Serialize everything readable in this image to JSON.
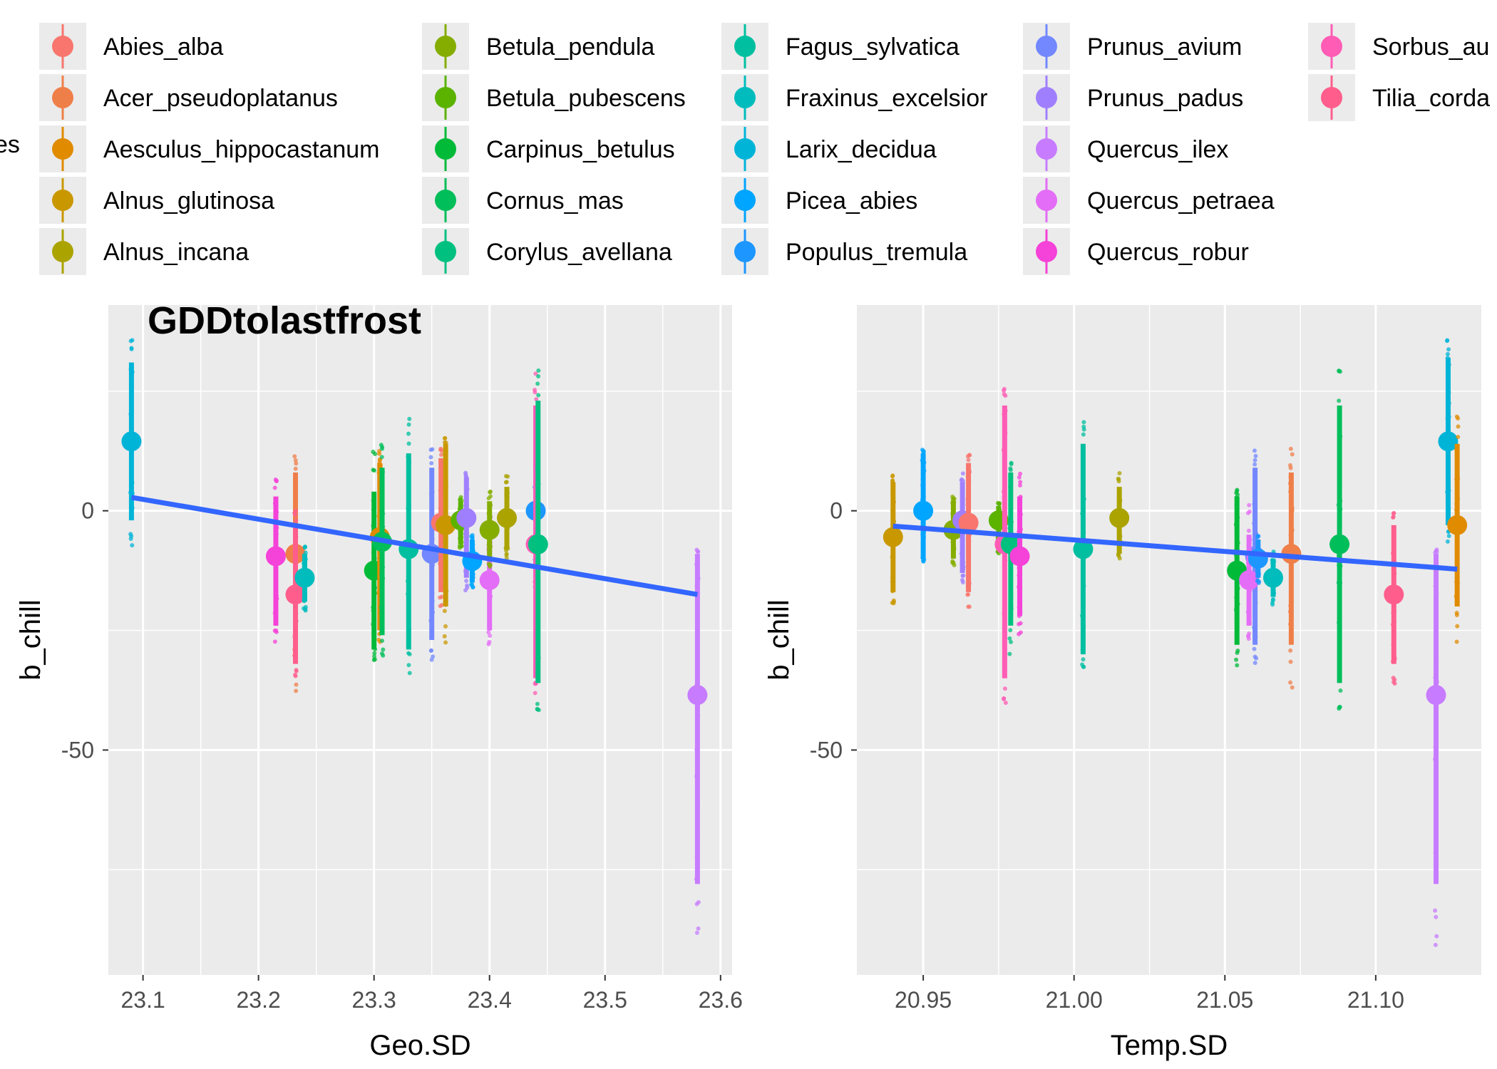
{
  "legend": {
    "title_visible": "es",
    "columns": [
      [
        {
          "label": "Abies_alba",
          "color": "#F8766D"
        },
        {
          "label": "Acer_pseudoplatanus",
          "color": "#EF7F49"
        },
        {
          "label": "Aesculus_hippocastanum",
          "color": "#E08B00"
        },
        {
          "label": "Alnus_glutinosa",
          "color": "#C99800"
        },
        {
          "label": "Alnus_incana",
          "color": "#ABA300"
        }
      ],
      [
        {
          "label": "Betula_pendula",
          "color": "#85AD00"
        },
        {
          "label": "Betula_pubescens",
          "color": "#5BB300"
        },
        {
          "label": "Carpinus_betulus",
          "color": "#00BA38"
        },
        {
          "label": "Cornus_mas",
          "color": "#00BE5A"
        },
        {
          "label": "Corylus_avellana",
          "color": "#00C07F"
        }
      ],
      [
        {
          "label": "Fagus_sylvatica",
          "color": "#00BFA0"
        },
        {
          "label": "Fraxinus_excelsior",
          "color": "#00BCBD"
        },
        {
          "label": "Larix_decidua",
          "color": "#00B4D8"
        },
        {
          "label": "Picea_abies",
          "color": "#00A5FF"
        },
        {
          "label": "Populus_tremula",
          "color": "#1E96FF"
        }
      ],
      [
        {
          "label": "Prunus_avium",
          "color": "#7388FF"
        },
        {
          "label": "Prunus_padus",
          "color": "#A07FFF"
        },
        {
          "label": "Quercus_ilex",
          "color": "#C77CFF"
        },
        {
          "label": "Quercus_petraea",
          "color": "#E36DF6"
        },
        {
          "label": "Quercus_robur",
          "color": "#F542D8"
        }
      ],
      [
        {
          "label": "Sorbus_au",
          "color": "#FF5CB5"
        },
        {
          "label": "Tilia_corda",
          "color": "#FF5E8C"
        }
      ]
    ]
  },
  "chart_data": [
    {
      "type": "scatter",
      "title": "GDDtolastfrost",
      "xlabel": "Geo.SD",
      "ylabel": "b_chill",
      "xlim": [
        23.07,
        23.61
      ],
      "ylim": [
        -97,
        43
      ],
      "xticks": [
        "23.1",
        "23.2",
        "23.3",
        "23.4",
        "23.5",
        "23.6"
      ],
      "xtick_values": [
        23.1,
        23.2,
        23.3,
        23.4,
        23.5,
        23.6
      ],
      "yticks": [
        "-50",
        "0"
      ],
      "ytick_values": [
        -50,
        0
      ],
      "grid": true,
      "trend_line": {
        "x": [
          23.09,
          23.58
        ],
        "y": [
          2.8,
          -17.5
        ],
        "color": "#3366FF"
      },
      "series": [
        {
          "name": "Larix_decidua",
          "x": 23.09,
          "mean": 14.5,
          "lo": -2,
          "hi": 31,
          "min": -9,
          "max": 36,
          "color": "#00B4D8"
        },
        {
          "name": "Quercus_robur",
          "x": 23.215,
          "mean": -9.5,
          "lo": -24,
          "hi": 3,
          "min": -28,
          "max": 8,
          "color": "#F542D8"
        },
        {
          "name": "Acer_pseudoplatanus",
          "x": 23.232,
          "mean": -9,
          "lo": -28,
          "hi": 8,
          "min": -38,
          "max": 13,
          "color": "#EF7F49"
        },
        {
          "name": "Tilia_corda",
          "x": 23.232,
          "mean": -17.5,
          "lo": -32,
          "hi": -3,
          "min": -35,
          "max": 0,
          "color": "#FF5E8C"
        },
        {
          "name": "Fraxinus_excelsior",
          "x": 23.24,
          "mean": -14,
          "lo": -19,
          "hi": -9,
          "min": -21,
          "max": -7,
          "color": "#00BCBD"
        },
        {
          "name": "Carpinus_betulus",
          "x": 23.3,
          "mean": -12.5,
          "lo": -29,
          "hi": 4,
          "min": -33,
          "max": 14,
          "color": "#00BA38"
        },
        {
          "name": "Aesculus_hippocastanum",
          "x": 23.305,
          "mean": -5.5,
          "lo": -25,
          "hi": 10,
          "min": -30,
          "max": 13,
          "color": "#E08B00"
        },
        {
          "name": "Cornus_mas",
          "x": 23.307,
          "mean": -6.5,
          "lo": -26,
          "hi": 9,
          "min": -31,
          "max": 14,
          "color": "#00BE5A"
        },
        {
          "name": "Fagus_sylvatica",
          "x": 23.33,
          "mean": -8,
          "lo": -29,
          "hi": 12,
          "min": -34,
          "max": 20,
          "color": "#00BFA0"
        },
        {
          "name": "Prunus_avium",
          "x": 23.35,
          "mean": -9,
          "lo": -27,
          "hi": 9,
          "min": -32,
          "max": 13,
          "color": "#7388FF"
        },
        {
          "name": "Abies_alba",
          "x": 23.358,
          "mean": -2.5,
          "lo": -17,
          "hi": 11,
          "min": -21,
          "max": 13,
          "color": "#F8766D"
        },
        {
          "name": "Alnus_glutinosa",
          "x": 23.362,
          "mean": -3,
          "lo": -20,
          "hi": 14,
          "min": -28,
          "max": 16,
          "color": "#C99800"
        },
        {
          "name": "Betula_pubescens",
          "x": 23.375,
          "mean": -2,
          "lo": -7,
          "hi": 2,
          "min": -8,
          "max": 3,
          "color": "#5BB300"
        },
        {
          "name": "Prunus_padus",
          "x": 23.38,
          "mean": -1.5,
          "lo": -14,
          "hi": 7,
          "min": -17,
          "max": 8,
          "color": "#A07FFF"
        },
        {
          "name": "Picea_abies",
          "x": 23.385,
          "mean": -10.5,
          "lo": -15,
          "hi": -6,
          "min": -16,
          "max": -5,
          "color": "#00A5FF"
        },
        {
          "name": "Quercus_petraea",
          "x": 23.4,
          "mean": -14.5,
          "lo": -25,
          "hi": -4,
          "min": -28,
          "max": 3,
          "color": "#E36DF6"
        },
        {
          "name": "Betula_pendula",
          "x": 23.4,
          "mean": -4,
          "lo": -10,
          "hi": 2,
          "min": -12,
          "max": 4,
          "color": "#85AD00"
        },
        {
          "name": "Alnus_incana",
          "x": 23.415,
          "mean": -1.5,
          "lo": -8,
          "hi": 5,
          "min": -10,
          "max": 8,
          "color": "#ABA300"
        },
        {
          "name": "Populus_tremula",
          "x": 23.44,
          "mean": 0,
          "lo": -14,
          "hi": 10,
          "min": -17,
          "max": 13,
          "color": "#1E96FF"
        },
        {
          "name": "Sorbus_au",
          "x": 23.44,
          "mean": -7,
          "lo": -35,
          "hi": 22,
          "min": -40,
          "max": 30,
          "color": "#FF5CB5"
        },
        {
          "name": "Corylus_avellana",
          "x": 23.442,
          "mean": -7,
          "lo": -36,
          "hi": 23,
          "min": -42,
          "max": 31,
          "color": "#00C07F"
        },
        {
          "name": "Quercus_ilex",
          "x": 23.58,
          "mean": -38.5,
          "lo": -78,
          "hi": -9,
          "min": -91,
          "max": -8,
          "color": "#C77CFF"
        }
      ]
    },
    {
      "type": "scatter",
      "title": "",
      "xlabel": "Temp.SD",
      "ylabel": "b_chill",
      "xlim": [
        20.928,
        21.135
      ],
      "ylim": [
        -97,
        43
      ],
      "xticks": [
        "20.95",
        "21.00",
        "21.05",
        "21.10"
      ],
      "xtick_values": [
        20.95,
        21.0,
        21.05,
        21.1
      ],
      "yticks": [
        "-50",
        "0"
      ],
      "ytick_values": [
        -50,
        0
      ],
      "grid": true,
      "trend_line": {
        "x": [
          20.94,
          21.127
        ],
        "y": [
          -3.2,
          -12.2
        ],
        "color": "#3366FF"
      },
      "series": [
        {
          "name": "Alnus_glutinosa",
          "x": 20.94,
          "mean": -5.5,
          "lo": -17,
          "hi": 6,
          "min": -20,
          "max": 8,
          "color": "#C99800"
        },
        {
          "name": "Picea_abies",
          "x": 20.95,
          "mean": 0,
          "lo": -10,
          "hi": 12,
          "min": -11,
          "max": 13,
          "color": "#00A5FF"
        },
        {
          "name": "Betula_pendula",
          "x": 20.96,
          "mean": -4,
          "lo": -10,
          "hi": 2,
          "min": -12,
          "max": 4,
          "color": "#85AD00"
        },
        {
          "name": "Prunus_padus",
          "x": 20.963,
          "mean": -2,
          "lo": -13,
          "hi": 6,
          "min": -15,
          "max": 8,
          "color": "#A07FFF"
        },
        {
          "name": "Abies_alba",
          "x": 20.965,
          "mean": -2.5,
          "lo": -17,
          "hi": 10,
          "min": -21,
          "max": 12,
          "color": "#F8766D"
        },
        {
          "name": "Betula_pubescens",
          "x": 20.975,
          "mean": -2,
          "lo": -8,
          "hi": 1,
          "min": -9,
          "max": 2,
          "color": "#5BB300"
        },
        {
          "name": "Sorbus_au",
          "x": 20.977,
          "mean": -7,
          "lo": -35,
          "hi": 22,
          "min": -41,
          "max": 30,
          "color": "#FF5CB5"
        },
        {
          "name": "Corylus_avellana",
          "x": 20.979,
          "mean": -7,
          "lo": -24,
          "hi": 8,
          "min": -30,
          "max": 10,
          "color": "#00C07F"
        },
        {
          "name": "Quercus_robur",
          "x": 20.982,
          "mean": -9.5,
          "lo": -22,
          "hi": 3,
          "min": -26,
          "max": 8,
          "color": "#F542D8"
        },
        {
          "name": "Fagus_sylvatica",
          "x": 21.003,
          "mean": -8,
          "lo": -30,
          "hi": 14,
          "min": -34,
          "max": 20,
          "color": "#00BFA0"
        },
        {
          "name": "Alnus_incana",
          "x": 21.015,
          "mean": -1.5,
          "lo": -9,
          "hi": 5,
          "min": -10,
          "max": 8,
          "color": "#ABA300"
        },
        {
          "name": "Carpinus_betulus",
          "x": 21.054,
          "mean": -12.5,
          "lo": -28,
          "hi": 3,
          "min": -33,
          "max": 5,
          "color": "#00BA38"
        },
        {
          "name": "Prunus_avium",
          "x": 21.06,
          "mean": -9.5,
          "lo": -28,
          "hi": 9,
          "min": -32,
          "max": 13,
          "color": "#7388FF"
        },
        {
          "name": "Quercus_petraea",
          "x": 21.058,
          "mean": -14.5,
          "lo": -24,
          "hi": -5,
          "min": -27,
          "max": 2,
          "color": "#E36DF6"
        },
        {
          "name": "Populus_tremula",
          "x": 21.061,
          "mean": -10,
          "lo": -14,
          "hi": -6,
          "min": -16,
          "max": -5,
          "color": "#1E96FF"
        },
        {
          "name": "Fraxinus_excelsior",
          "x": 21.066,
          "mean": -14,
          "lo": -18,
          "hi": -10,
          "min": -20,
          "max": -8,
          "color": "#00BCBD"
        },
        {
          "name": "Acer_pseudoplatanus",
          "x": 21.072,
          "mean": -9,
          "lo": -28,
          "hi": 8,
          "min": -37,
          "max": 13,
          "color": "#EF7F49"
        },
        {
          "name": "Cornus_mas",
          "x": 21.088,
          "mean": -7,
          "lo": -36,
          "hi": 22,
          "min": -42,
          "max": 31,
          "color": "#00BE5A"
        },
        {
          "name": "Tilia_corda",
          "x": 21.106,
          "mean": -17.5,
          "lo": -32,
          "hi": -3,
          "min": -38,
          "max": 0,
          "color": "#FF5E8C"
        },
        {
          "name": "Quercus_ilex",
          "x": 21.12,
          "mean": -38.5,
          "lo": -78,
          "hi": -9,
          "min": -91,
          "max": -8,
          "color": "#C77CFF"
        },
        {
          "name": "Larix_decidua",
          "x": 21.124,
          "mean": 14.5,
          "lo": -3,
          "hi": 32,
          "min": -9,
          "max": 36,
          "color": "#00B4D8"
        },
        {
          "name": "Aesculus_hippocastanum",
          "x": 21.127,
          "mean": -3,
          "lo": -20,
          "hi": 14,
          "min": -28,
          "max": 20,
          "color": "#E08B00"
        }
      ]
    }
  ]
}
